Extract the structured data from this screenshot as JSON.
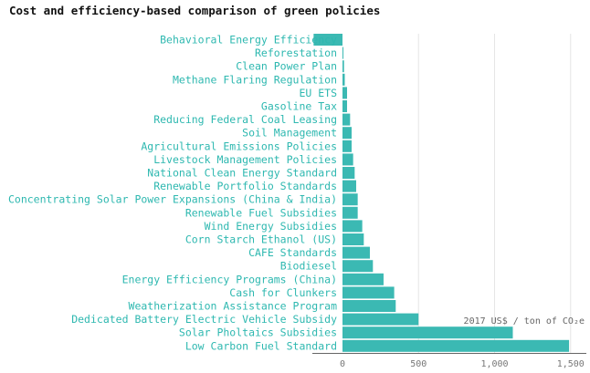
{
  "chart_data": {
    "type": "bar",
    "orientation": "horizontal",
    "title": "Cost and efficiency-based comparison of green policies",
    "xlabel": "2017 US$ / ton of CO₂e",
    "ylabel": "",
    "xlim": [
      -200,
      1600
    ],
    "xticks": [
      0,
      500,
      1000,
      1500
    ],
    "xtick_labels": [
      "0",
      "500",
      "1,000",
      "1,500"
    ],
    "grid": true,
    "legend": "none",
    "bar_color": "#3bb9b3",
    "label_color": "#2eb8b0",
    "categories": [
      "Behavioral Energy Efficiency",
      "Reforestation",
      "Clean Power Plan",
      "Methane Flaring Regulation",
      "EU ETS",
      "Gasoline Tax",
      "Reducing Federal Coal Leasing",
      "Soil Management",
      "Agricultural Emissions Policies",
      "Livestock Management Policies",
      "National Clean Energy Standard",
      "Renewable Portfolio Standards",
      "Concentrating Solar Power Expansions (China & India)",
      "Renewable Fuel Subsidies",
      "Wind Energy Subsidies",
      "Corn Starch Ethanol (US)",
      "CAFE Standards",
      "Biodiesel",
      "Energy Efficiency Programs (China)",
      "Cash for Clunkers",
      "Weatherization Assistance Program",
      "Dedicated Battery Electric Vehicle Subsidy",
      "Solar Pholtaics Subsidies",
      "Low Carbon Fuel Standard"
    ],
    "values": [
      -190,
      2,
      10,
      15,
      30,
      30,
      50,
      60,
      60,
      70,
      80,
      90,
      100,
      100,
      130,
      140,
      180,
      200,
      270,
      340,
      350,
      500,
      1120,
      1490
    ]
  }
}
